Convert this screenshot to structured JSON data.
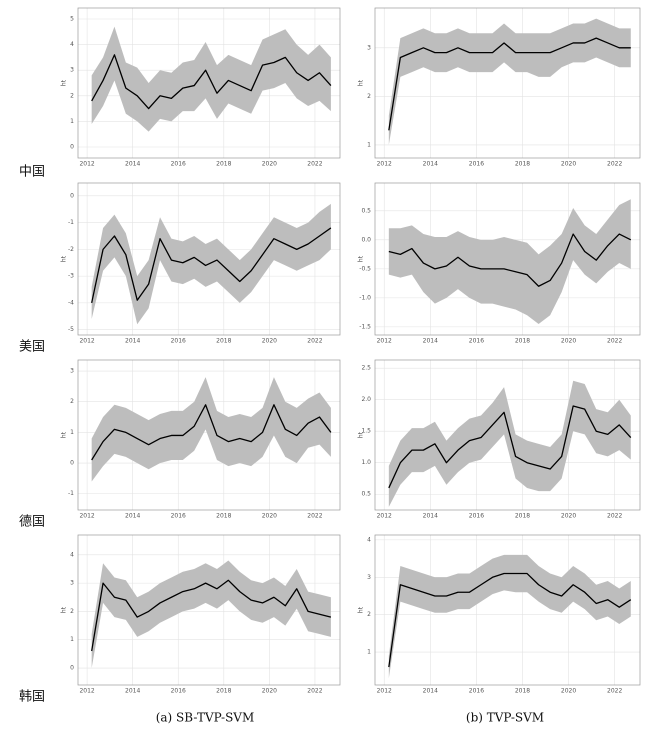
{
  "chart_data": [
    {
      "type": "line",
      "ylabel": "ht",
      "x": [
        2012.2,
        2012.7,
        2013.2,
        2013.7,
        2014.2,
        2014.7,
        2015.2,
        2015.7,
        2016.2,
        2016.7,
        2017.2,
        2017.7,
        2018.2,
        2018.7,
        2019.2,
        2019.7,
        2020.2,
        2020.7,
        2021.2,
        2021.7,
        2022.2,
        2022.7
      ],
      "series": [
        {
          "color": "#000000",
          "values": [
            1.8,
            2.6,
            3.6,
            2.3,
            2.0,
            1.5,
            2.0,
            1.9,
            2.3,
            2.4,
            3.0,
            2.1,
            2.6,
            2.4,
            2.2,
            3.2,
            3.3,
            3.5,
            2.9,
            2.6,
            2.9,
            2.4
          ]
        }
      ],
      "band": {
        "color": "#bdbdbd",
        "lower": [
          0.9,
          1.6,
          2.6,
          1.3,
          1.0,
          0.6,
          1.1,
          1.0,
          1.4,
          1.4,
          1.9,
          1.1,
          1.7,
          1.5,
          1.3,
          2.2,
          2.3,
          2.5,
          1.9,
          1.6,
          1.8,
          1.4
        ],
        "upper": [
          2.8,
          3.5,
          4.7,
          3.3,
          3.1,
          2.5,
          3.0,
          2.9,
          3.3,
          3.4,
          4.1,
          3.2,
          3.6,
          3.4,
          3.2,
          4.2,
          4.4,
          4.6,
          4.0,
          3.6,
          4.0,
          3.5
        ]
      },
      "xlim": [
        2011.6,
        2023.1
      ],
      "xticks": [
        2012,
        2014,
        2016,
        2018,
        2020,
        2022
      ],
      "ylim": [
        -0.43,
        5.43
      ],
      "yticks": [
        0,
        1,
        2,
        3,
        4,
        5
      ],
      "grid": true
    },
    {
      "type": "line",
      "ylabel": "ht",
      "x": [
        2012.2,
        2012.7,
        2013.2,
        2013.7,
        2014.2,
        2014.7,
        2015.2,
        2015.7,
        2016.2,
        2016.7,
        2017.2,
        2017.7,
        2018.2,
        2018.7,
        2019.2,
        2019.7,
        2020.2,
        2020.7,
        2021.2,
        2021.7,
        2022.2,
        2022.7
      ],
      "series": [
        {
          "color": "#000000",
          "values": [
            1.3,
            2.8,
            2.9,
            3.0,
            2.9,
            2.9,
            3.0,
            2.9,
            2.9,
            2.9,
            3.1,
            2.9,
            2.9,
            2.9,
            2.9,
            3.0,
            3.1,
            3.1,
            3.2,
            3.1,
            3.0,
            3.0
          ]
        }
      ],
      "band": {
        "color": "#bdbdbd",
        "lower": [
          1.0,
          2.4,
          2.5,
          2.6,
          2.5,
          2.5,
          2.6,
          2.5,
          2.5,
          2.5,
          2.7,
          2.5,
          2.5,
          2.4,
          2.4,
          2.6,
          2.7,
          2.7,
          2.8,
          2.7,
          2.6,
          2.6
        ],
        "upper": [
          1.6,
          3.2,
          3.3,
          3.4,
          3.3,
          3.3,
          3.4,
          3.3,
          3.3,
          3.3,
          3.5,
          3.3,
          3.3,
          3.3,
          3.3,
          3.4,
          3.5,
          3.5,
          3.6,
          3.5,
          3.4,
          3.4
        ]
      },
      "xlim": [
        2011.6,
        2023.1
      ],
      "xticks": [
        2012,
        2014,
        2016,
        2018,
        2020,
        2022
      ],
      "ylim": [
        0.73,
        3.82
      ],
      "yticks": [
        1,
        2,
        3
      ],
      "grid": true
    },
    {
      "type": "line",
      "ylabel": "ht",
      "x": [
        2012.2,
        2012.7,
        2013.2,
        2013.7,
        2014.2,
        2014.7,
        2015.2,
        2015.7,
        2016.2,
        2016.7,
        2017.2,
        2017.7,
        2018.2,
        2018.7,
        2019.2,
        2019.7,
        2020.2,
        2020.7,
        2021.2,
        2021.7,
        2022.2,
        2022.7
      ],
      "series": [
        {
          "color": "#000000",
          "values": [
            -4.0,
            -2.0,
            -1.5,
            -2.2,
            -3.9,
            -3.3,
            -1.6,
            -2.4,
            -2.5,
            -2.3,
            -2.6,
            -2.4,
            -2.8,
            -3.2,
            -2.8,
            -2.2,
            -1.6,
            -1.8,
            -2.0,
            -1.8,
            -1.5,
            -1.2
          ]
        }
      ],
      "band": {
        "color": "#bdbdbd",
        "lower": [
          -4.6,
          -2.8,
          -2.3,
          -3.0,
          -4.8,
          -4.2,
          -2.4,
          -3.2,
          -3.3,
          -3.1,
          -3.4,
          -3.2,
          -3.6,
          -4.0,
          -3.6,
          -3.0,
          -2.4,
          -2.6,
          -2.8,
          -2.6,
          -2.4,
          -2.0
        ],
        "upper": [
          -3.4,
          -1.2,
          -0.7,
          -1.4,
          -3.0,
          -2.4,
          -0.8,
          -1.6,
          -1.7,
          -1.5,
          -1.8,
          -1.6,
          -2.0,
          -2.4,
          -2.0,
          -1.4,
          -0.8,
          -1.0,
          -1.2,
          -1.0,
          -0.6,
          -0.3
        ]
      },
      "xlim": [
        2011.6,
        2023.1
      ],
      "xticks": [
        2012,
        2014,
        2016,
        2018,
        2020,
        2022
      ],
      "ylim": [
        -5.2,
        0.48
      ],
      "yticks": [
        -5,
        -4,
        -3,
        -2,
        -1,
        0
      ],
      "grid": true
    },
    {
      "type": "line",
      "ylabel": "ht",
      "x": [
        2012.2,
        2012.7,
        2013.2,
        2013.7,
        2014.2,
        2014.7,
        2015.2,
        2015.7,
        2016.2,
        2016.7,
        2017.2,
        2017.7,
        2018.2,
        2018.7,
        2019.2,
        2019.7,
        2020.2,
        2020.7,
        2021.2,
        2021.7,
        2022.2,
        2022.7
      ],
      "series": [
        {
          "color": "#000000",
          "values": [
            -0.2,
            -0.25,
            -0.15,
            -0.4,
            -0.5,
            -0.45,
            -0.3,
            -0.45,
            -0.5,
            -0.5,
            -0.5,
            -0.55,
            -0.6,
            -0.8,
            -0.7,
            -0.4,
            0.1,
            -0.2,
            -0.35,
            -0.1,
            0.1,
            0.0
          ]
        }
      ],
      "band": {
        "color": "#bdbdbd",
        "lower": [
          -0.6,
          -0.65,
          -0.6,
          -0.9,
          -1.1,
          -1.0,
          -0.85,
          -1.0,
          -1.1,
          -1.1,
          -1.15,
          -1.2,
          -1.3,
          -1.45,
          -1.3,
          -0.9,
          -0.35,
          -0.6,
          -0.75,
          -0.55,
          -0.4,
          -0.5
        ],
        "upper": [
          0.2,
          0.2,
          0.25,
          0.1,
          0.05,
          0.05,
          0.15,
          0.05,
          0.0,
          0.0,
          0.05,
          0.0,
          -0.05,
          -0.25,
          -0.1,
          0.1,
          0.55,
          0.25,
          0.1,
          0.35,
          0.6,
          0.7
        ]
      },
      "xlim": [
        2011.6,
        2023.1
      ],
      "xticks": [
        2012,
        2014,
        2016,
        2018,
        2020,
        2022
      ],
      "ylim": [
        -1.64,
        0.98
      ],
      "yticks": [
        -1.5,
        {
          "value": -1,
          "label": "-1.0"
        },
        -0.5,
        {
          "value": 0,
          "label": "0.0"
        },
        0.5
      ],
      "grid": true
    },
    {
      "type": "line",
      "ylabel": "ht",
      "x": [
        2012.2,
        2012.7,
        2013.2,
        2013.7,
        2014.2,
        2014.7,
        2015.2,
        2015.7,
        2016.2,
        2016.7,
        2017.2,
        2017.7,
        2018.2,
        2018.7,
        2019.2,
        2019.7,
        2020.2,
        2020.7,
        2021.2,
        2021.7,
        2022.2,
        2022.7
      ],
      "series": [
        {
          "color": "#000000",
          "values": [
            0.1,
            0.7,
            1.1,
            1.0,
            0.8,
            0.6,
            0.8,
            0.9,
            0.9,
            1.2,
            1.9,
            0.9,
            0.7,
            0.8,
            0.7,
            1.0,
            1.9,
            1.1,
            0.9,
            1.3,
            1.5,
            1.0
          ]
        }
      ],
      "band": {
        "color": "#bdbdbd",
        "lower": [
          -0.6,
          -0.1,
          0.3,
          0.2,
          0.0,
          -0.2,
          0.0,
          0.1,
          0.1,
          0.4,
          1.1,
          0.1,
          -0.1,
          0.0,
          -0.1,
          0.2,
          0.9,
          0.2,
          0.0,
          0.5,
          0.6,
          0.2
        ],
        "upper": [
          0.8,
          1.5,
          1.9,
          1.8,
          1.6,
          1.4,
          1.6,
          1.7,
          1.7,
          2.0,
          2.8,
          1.7,
          1.5,
          1.6,
          1.5,
          1.8,
          2.8,
          2.0,
          1.8,
          2.1,
          2.3,
          1.8
        ]
      },
      "xlim": [
        2011.6,
        2023.1
      ],
      "xticks": [
        2012,
        2014,
        2016,
        2018,
        2020,
        2022
      ],
      "ylim": [
        -1.53,
        3.36
      ],
      "yticks": [
        -1,
        0,
        1,
        2,
        3
      ],
      "grid": true
    },
    {
      "type": "line",
      "ylabel": "ht",
      "x": [
        2012.2,
        2012.7,
        2013.2,
        2013.7,
        2014.2,
        2014.7,
        2015.2,
        2015.7,
        2016.2,
        2016.7,
        2017.2,
        2017.7,
        2018.2,
        2018.7,
        2019.2,
        2019.7,
        2020.2,
        2020.7,
        2021.2,
        2021.7,
        2022.2,
        2022.7
      ],
      "series": [
        {
          "color": "#000000",
          "values": [
            0.6,
            1.0,
            1.2,
            1.2,
            1.3,
            1.0,
            1.2,
            1.35,
            1.4,
            1.6,
            1.8,
            1.1,
            1.0,
            0.95,
            0.9,
            1.1,
            1.9,
            1.85,
            1.5,
            1.45,
            1.6,
            1.4
          ]
        }
      ],
      "band": {
        "color": "#bdbdbd",
        "lower": [
          0.3,
          0.65,
          0.85,
          0.85,
          0.95,
          0.65,
          0.85,
          1.0,
          1.05,
          1.25,
          1.45,
          0.75,
          0.6,
          0.55,
          0.55,
          0.75,
          1.5,
          1.45,
          1.15,
          1.1,
          1.2,
          1.05
        ],
        "upper": [
          0.95,
          1.35,
          1.55,
          1.55,
          1.65,
          1.35,
          1.55,
          1.7,
          1.75,
          1.95,
          2.2,
          1.45,
          1.35,
          1.3,
          1.25,
          1.45,
          2.3,
          2.25,
          1.85,
          1.8,
          2.0,
          1.75
        ]
      },
      "xlim": [
        2011.6,
        2023.1
      ],
      "xticks": [
        2012,
        2014,
        2016,
        2018,
        2020,
        2022
      ],
      "ylim": [
        0.25,
        2.63
      ],
      "yticks": [
        0.5,
        {
          "value": 1,
          "label": "1.0"
        },
        1.5,
        {
          "value": 2,
          "label": "2.0"
        },
        2.5
      ],
      "grid": true
    },
    {
      "type": "line",
      "ylabel": "ht",
      "x": [
        2012.2,
        2012.7,
        2013.2,
        2013.7,
        2014.2,
        2014.7,
        2015.2,
        2015.7,
        2016.2,
        2016.7,
        2017.2,
        2017.7,
        2018.2,
        2018.7,
        2019.2,
        2019.7,
        2020.2,
        2020.7,
        2021.2,
        2021.7,
        2022.2,
        2022.7
      ],
      "series": [
        {
          "color": "#000000",
          "values": [
            0.6,
            3.0,
            2.5,
            2.4,
            1.8,
            2.0,
            2.3,
            2.5,
            2.7,
            2.8,
            3.0,
            2.8,
            3.1,
            2.7,
            2.4,
            2.3,
            2.5,
            2.2,
            2.8,
            2.0,
            1.9,
            1.8
          ]
        }
      ],
      "band": {
        "color": "#bdbdbd",
        "lower": [
          0.0,
          2.3,
          1.8,
          1.7,
          1.1,
          1.3,
          1.6,
          1.8,
          2.0,
          2.1,
          2.3,
          2.1,
          2.4,
          2.0,
          1.7,
          1.6,
          1.8,
          1.5,
          2.1,
          1.3,
          1.2,
          1.1
        ],
        "upper": [
          1.2,
          3.7,
          3.2,
          3.1,
          2.5,
          2.7,
          3.0,
          3.2,
          3.4,
          3.5,
          3.7,
          3.5,
          3.8,
          3.4,
          3.1,
          3.0,
          3.2,
          2.9,
          3.5,
          2.7,
          2.6,
          2.5
        ]
      },
      "xlim": [
        2011.6,
        2023.1
      ],
      "xticks": [
        2012,
        2014,
        2016,
        2018,
        2020,
        2022
      ],
      "ylim": [
        -0.6,
        4.7
      ],
      "yticks": [
        0,
        1,
        2,
        3,
        4
      ],
      "grid": true
    },
    {
      "type": "line",
      "ylabel": "ht",
      "x": [
        2012.2,
        2012.7,
        2013.2,
        2013.7,
        2014.2,
        2014.7,
        2015.2,
        2015.7,
        2016.2,
        2016.7,
        2017.2,
        2017.7,
        2018.2,
        2018.7,
        2019.2,
        2019.7,
        2020.2,
        2020.7,
        2021.2,
        2021.7,
        2022.2,
        2022.7
      ],
      "series": [
        {
          "color": "#000000",
          "values": [
            0.6,
            2.8,
            2.7,
            2.6,
            2.5,
            2.5,
            2.6,
            2.6,
            2.8,
            3.0,
            3.1,
            3.1,
            3.1,
            2.8,
            2.6,
            2.5,
            2.8,
            2.6,
            2.3,
            2.4,
            2.2,
            2.4
          ]
        }
      ],
      "band": {
        "color": "#bdbdbd",
        "lower": [
          0.3,
          2.35,
          2.25,
          2.15,
          2.05,
          2.05,
          2.15,
          2.15,
          2.35,
          2.55,
          2.65,
          2.6,
          2.6,
          2.35,
          2.15,
          2.05,
          2.35,
          2.15,
          1.85,
          1.95,
          1.75,
          1.95
        ],
        "upper": [
          0.9,
          3.3,
          3.2,
          3.1,
          3.0,
          3.0,
          3.1,
          3.1,
          3.3,
          3.5,
          3.6,
          3.6,
          3.6,
          3.3,
          3.1,
          3.0,
          3.3,
          3.1,
          2.8,
          2.9,
          2.7,
          2.9
        ]
      },
      "xlim": [
        2011.6,
        2023.1
      ],
      "xticks": [
        2012,
        2014,
        2016,
        2018,
        2020,
        2022
      ],
      "ylim": [
        0.12,
        4.13
      ],
      "yticks": [
        1,
        2,
        3,
        4
      ],
      "grid": true
    }
  ],
  "row_labels": [
    "中国",
    "美国",
    "德国",
    "韩国"
  ],
  "captions": [
    "(a) SB-TVP-SVM",
    "(b) TVP-SVM"
  ]
}
